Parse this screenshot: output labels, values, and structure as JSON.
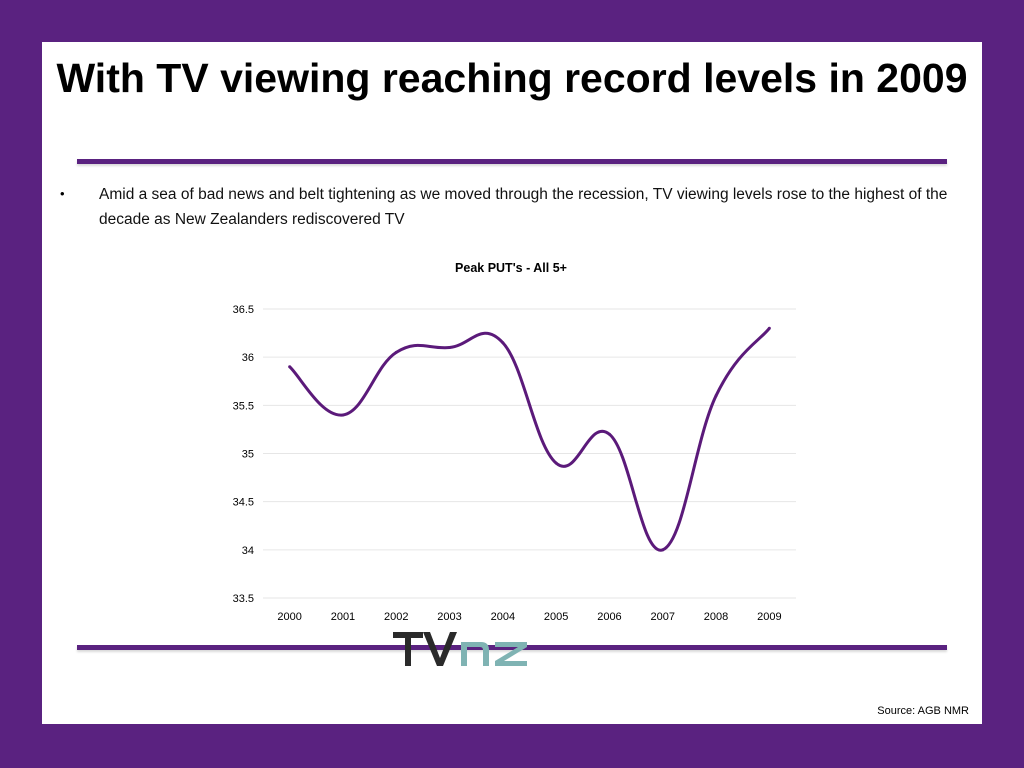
{
  "slide": {
    "title": "With TV viewing reaching record levels in 2009",
    "bullet_marker": "•",
    "bullet_text": "Amid a sea of bad news and belt tightening as we moved through the recession, TV viewing levels rose to the highest of the decade as New Zealanders rediscovered TV",
    "source": "Source: AGB NMR",
    "logo_text": "TVNZ"
  },
  "colors": {
    "frame": "#5a2280",
    "line": "#5b1a7a",
    "logo_dark": "#2a2a2a",
    "logo_teal": "#7fb3b3"
  },
  "chart_data": {
    "type": "line",
    "title": "Peak PUT's - All 5+",
    "xlabel": "",
    "ylabel": "",
    "categories": [
      "2000",
      "2001",
      "2002",
      "2003",
      "2004",
      "2005",
      "2006",
      "2007",
      "2008",
      "2009"
    ],
    "series": [
      {
        "values": [
          35.9,
          35.4,
          36.05,
          36.1,
          36.15,
          34.9,
          35.2,
          34.0,
          35.6,
          36.3
        ]
      }
    ],
    "ylim": [
      33.5,
      36.5
    ],
    "yticks": [
      "33.5",
      "34",
      "34.5",
      "35",
      "35.5",
      "36",
      "36.5"
    ],
    "grid": true,
    "smooth": true
  }
}
